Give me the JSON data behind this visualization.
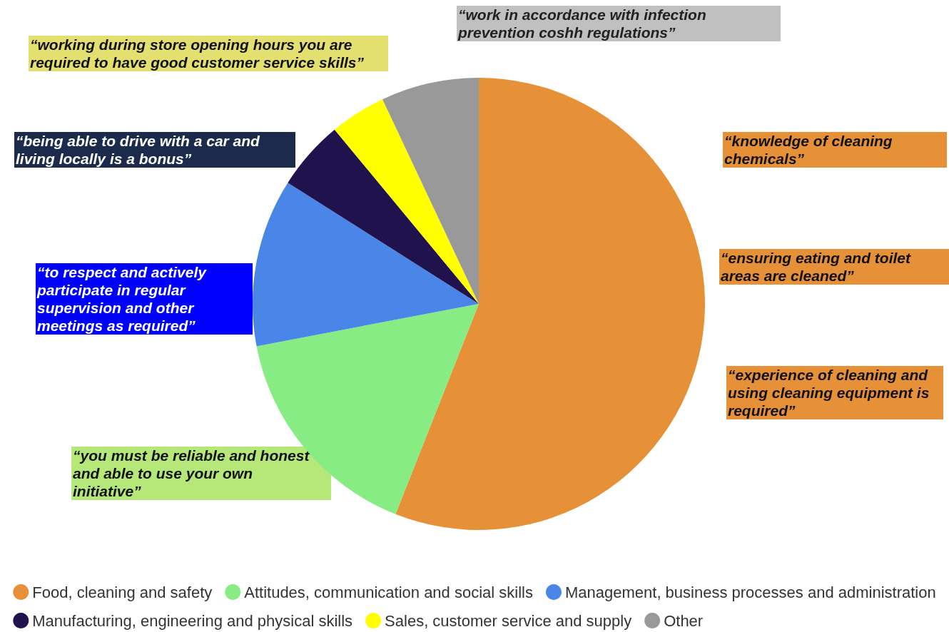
{
  "chart_data": {
    "type": "pie",
    "categories": [
      "Food, cleaning and safety",
      "Attitudes, communication and social skills",
      "Management, business processes and administration",
      "Manufacturing, engineering and physical skills",
      "Sales, customer service and supply",
      "Other"
    ],
    "values": [
      56,
      16,
      12,
      5,
      4,
      7
    ],
    "colors": [
      "#e69138",
      "#88ec84",
      "#4a86e8",
      "#20124d",
      "#ffff00",
      "#999999"
    ],
    "legend": "bottom",
    "annotations": [
      "“work in accordance with infection prevention coshh regulations”",
      "“working during store opening hours you are required to have good customer service skills”",
      "“being able to drive with a car and living locally is a bonus”",
      "“to respect and actively participate in regular supervision and other meetings as required”",
      "“you must be reliable and honest and able to use your own initiative”",
      "“knowledge of cleaning chemicals”",
      "“ensuring eating and toilet areas are cleaned”",
      "“experience of cleaning and using cleaning equipment is required”"
    ]
  }
}
